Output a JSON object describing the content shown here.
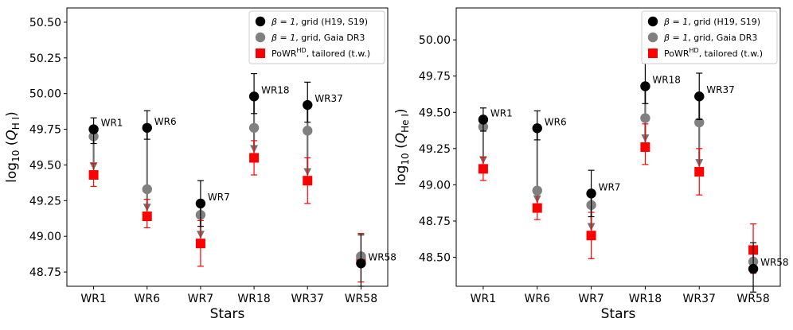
{
  "chart_data": [
    {
      "type": "scatter",
      "xlabel": "Stars",
      "ylabel": "log10 (Q_HI)",
      "ylabel_main": "log",
      "ylabel_sub": "10",
      "ylabel_var": "Q",
      "ylabel_varsub": "H I",
      "categories": [
        "WR1",
        "WR6",
        "WR7",
        "WR18",
        "WR37",
        "WR58"
      ],
      "ylim": [
        48.65,
        50.6
      ],
      "yticks": [
        48.75,
        49.0,
        49.25,
        49.5,
        49.75,
        50.0,
        50.25,
        50.5
      ],
      "ytick_labels": [
        "48.75",
        "49.00",
        "49.25",
        "49.50",
        "49.75",
        "50.00",
        "50.25",
        "50.50"
      ],
      "series": [
        {
          "name": "β = 1, grid (H19, S19)",
          "label_prefix": "β = 1",
          "label_suffix": ", grid (H19, S19)",
          "color": "#000000",
          "marker": "circle",
          "values": [
            49.75,
            49.76,
            49.23,
            49.98,
            49.92,
            48.81
          ],
          "err_up": [
            0.08,
            0.12,
            0.16,
            0.16,
            0.16,
            0.2
          ],
          "err_down": [
            0.1,
            0.08,
            0.16,
            0.12,
            0.12,
            0.16
          ]
        },
        {
          "name": "β = 1, grid, Gaia DR3",
          "label_prefix": "β = 1",
          "label_suffix": ", grid, Gaia DR3",
          "color": "#808080",
          "marker": "circle",
          "values": [
            49.7,
            49.33,
            49.15,
            49.76,
            49.74,
            48.86
          ],
          "err_up": [
            0,
            0,
            0,
            0,
            0,
            0
          ],
          "err_down": [
            0,
            0,
            0,
            0,
            0,
            0
          ]
        },
        {
          "name": "PoWR^HD, tailored (t.w.)",
          "label_main": "PoWR",
          "label_sup": "HD",
          "label_suffix": ", tailored (t.w.)",
          "color": "#ff0000",
          "marker": "square",
          "values": [
            49.43,
            49.14,
            48.95,
            49.55,
            49.39,
            48.84
          ],
          "err_up": [
            0.08,
            0.12,
            0.16,
            0.12,
            0.16,
            0.18
          ],
          "err_down": [
            0.08,
            0.08,
            0.16,
            0.12,
            0.16,
            0.16
          ]
        }
      ],
      "arrows": {
        "from_series": 0,
        "to_series": 2
      },
      "annotations": [
        "WR1",
        "WR6",
        "WR7",
        "WR18",
        "WR37",
        "WR58"
      ],
      "legend": "top-right"
    },
    {
      "type": "scatter",
      "xlabel": "Stars",
      "ylabel": "log10 (Q_HeI)",
      "ylabel_main": "log",
      "ylabel_sub": "10",
      "ylabel_var": "Q",
      "ylabel_varsub": "He I",
      "categories": [
        "WR1",
        "WR6",
        "WR7",
        "WR18",
        "WR37",
        "WR58"
      ],
      "ylim": [
        48.3,
        50.22
      ],
      "yticks": [
        48.5,
        48.75,
        49.0,
        49.25,
        49.5,
        49.75,
        50.0
      ],
      "ytick_labels": [
        "48.50",
        "48.75",
        "49.00",
        "49.25",
        "49.50",
        "49.75",
        "50.00"
      ],
      "series": [
        {
          "name": "β = 1, grid (H19, S19)",
          "label_prefix": "β = 1",
          "label_suffix": ", grid (H19, S19)",
          "color": "#000000",
          "marker": "circle",
          "values": [
            49.45,
            49.39,
            48.94,
            49.68,
            49.61,
            48.42
          ],
          "err_up": [
            0.08,
            0.12,
            0.16,
            0.16,
            0.16,
            0.18
          ],
          "err_down": [
            0.08,
            0.08,
            0.16,
            0.12,
            0.16,
            0.16
          ]
        },
        {
          "name": "β = 1, grid, Gaia DR3",
          "label_prefix": "β = 1",
          "label_suffix": ", grid, Gaia DR3",
          "color": "#808080",
          "marker": "circle",
          "values": [
            49.4,
            48.96,
            48.86,
            49.46,
            49.43,
            48.47
          ],
          "err_up": [
            0,
            0,
            0,
            0,
            0,
            0
          ],
          "err_down": [
            0,
            0,
            0,
            0,
            0,
            0
          ]
        },
        {
          "name": "PoWR^HD, tailored (t.w.)",
          "label_main": "PoWR",
          "label_sup": "HD",
          "label_suffix": ", tailored (t.w.)",
          "color": "#ff0000",
          "marker": "square",
          "values": [
            49.11,
            48.84,
            48.65,
            49.26,
            49.09,
            48.55
          ],
          "err_up": [
            0.08,
            0.12,
            0.16,
            0.16,
            0.16,
            0.18
          ],
          "err_down": [
            0.08,
            0.08,
            0.16,
            0.12,
            0.16,
            0.16
          ]
        }
      ],
      "arrows": {
        "from_series": 0,
        "to_series": 2
      },
      "annotations": [
        "WR1",
        "WR6",
        "WR7",
        "WR18",
        "WR37",
        "WR58"
      ],
      "legend": "top-right"
    }
  ]
}
